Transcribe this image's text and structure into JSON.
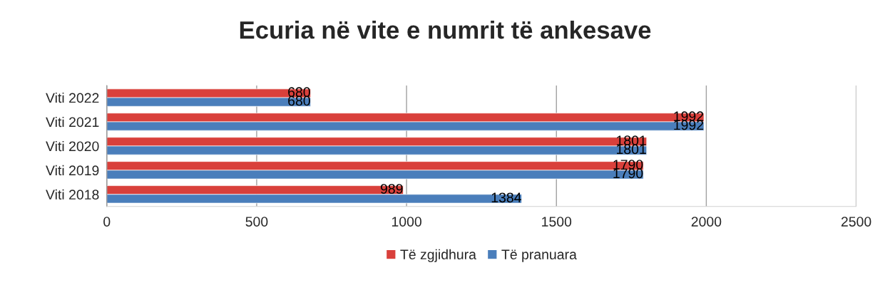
{
  "chart_data": {
    "type": "bar",
    "orientation": "horizontal",
    "title": "Ecuria në vite e numrit të ankesave",
    "categories": [
      "Viti 2022",
      "Viti 2021",
      "Viti 2020",
      "Viti 2019",
      "Viti 2018"
    ],
    "series": [
      {
        "name": "Të zgjidhura",
        "color": "#d9403b",
        "values": [
          680,
          1992,
          1801,
          1790,
          989
        ]
      },
      {
        "name": "Të pranuara",
        "color": "#4a7ebb",
        "values": [
          680,
          1992,
          1801,
          1790,
          1384
        ]
      }
    ],
    "xlim": [
      0,
      2500
    ],
    "xticks": [
      0,
      500,
      1000,
      1500,
      2000,
      2500
    ],
    "grid": "x",
    "legend": "bottom",
    "data_labels": true
  }
}
